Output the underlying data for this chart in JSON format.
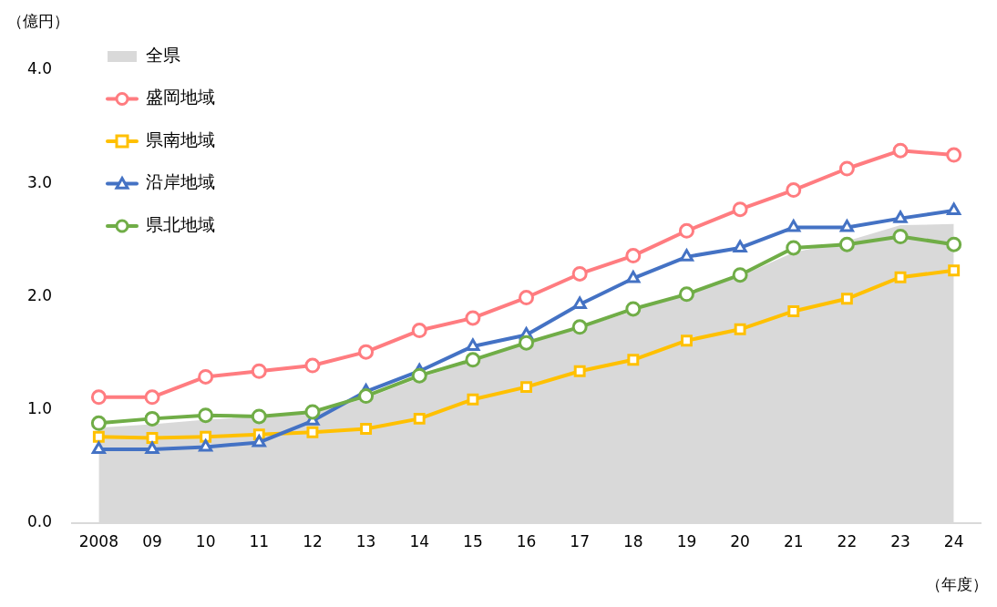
{
  "chart_data": {
    "type": "line",
    "ylabel": "（億円）",
    "xlabel": "（年度）",
    "categories": [
      "2008",
      "09",
      "10",
      "11",
      "12",
      "13",
      "14",
      "15",
      "16",
      "17",
      "18",
      "19",
      "20",
      "21",
      "22",
      "23",
      "24"
    ],
    "series": [
      {
        "name": "全県",
        "type": "area",
        "color": "#d9d9d9",
        "marker": "none",
        "values": [
          0.84,
          0.87,
          0.91,
          0.94,
          0.97,
          1.1,
          1.28,
          1.43,
          1.58,
          1.72,
          1.87,
          2.04,
          2.18,
          2.39,
          2.49,
          2.63,
          2.64
        ]
      },
      {
        "name": "盛岡地域",
        "color": "#ff7c80",
        "marker": "circle",
        "values": [
          1.11,
          1.11,
          1.29,
          1.34,
          1.39,
          1.51,
          1.7,
          1.81,
          1.99,
          2.2,
          2.36,
          2.58,
          2.77,
          2.94,
          3.13,
          3.29,
          3.25
        ]
      },
      {
        "name": "県南地域",
        "color": "#ffc000",
        "marker": "square",
        "values": [
          0.76,
          0.75,
          0.76,
          0.78,
          0.8,
          0.83,
          0.92,
          1.09,
          1.2,
          1.34,
          1.44,
          1.61,
          1.71,
          1.87,
          1.98,
          2.17,
          2.23
        ]
      },
      {
        "name": "沿岸地域",
        "color": "#4472c4",
        "marker": "triangle",
        "values": [
          0.65,
          0.65,
          0.67,
          0.71,
          0.9,
          1.16,
          1.34,
          1.56,
          1.66,
          1.93,
          2.16,
          2.35,
          2.43,
          2.61,
          2.61,
          2.69,
          2.76
        ]
      },
      {
        "name": "県北地域",
        "color": "#70ad47",
        "marker": "circle",
        "values": [
          0.88,
          0.92,
          0.95,
          0.94,
          0.98,
          1.12,
          1.3,
          1.44,
          1.59,
          1.73,
          1.89,
          2.02,
          2.19,
          2.43,
          2.46,
          2.53,
          2.46
        ]
      }
    ],
    "ylim": [
      0,
      4
    ],
    "yticks": [
      {
        "value": 0,
        "label": "0.0"
      },
      {
        "value": 1,
        "label": "1.0"
      },
      {
        "value": 2,
        "label": "2.0"
      },
      {
        "value": 3,
        "label": "3.0"
      },
      {
        "value": 4,
        "label": "4.0"
      }
    ],
    "grid": false,
    "legend": "top left"
  }
}
